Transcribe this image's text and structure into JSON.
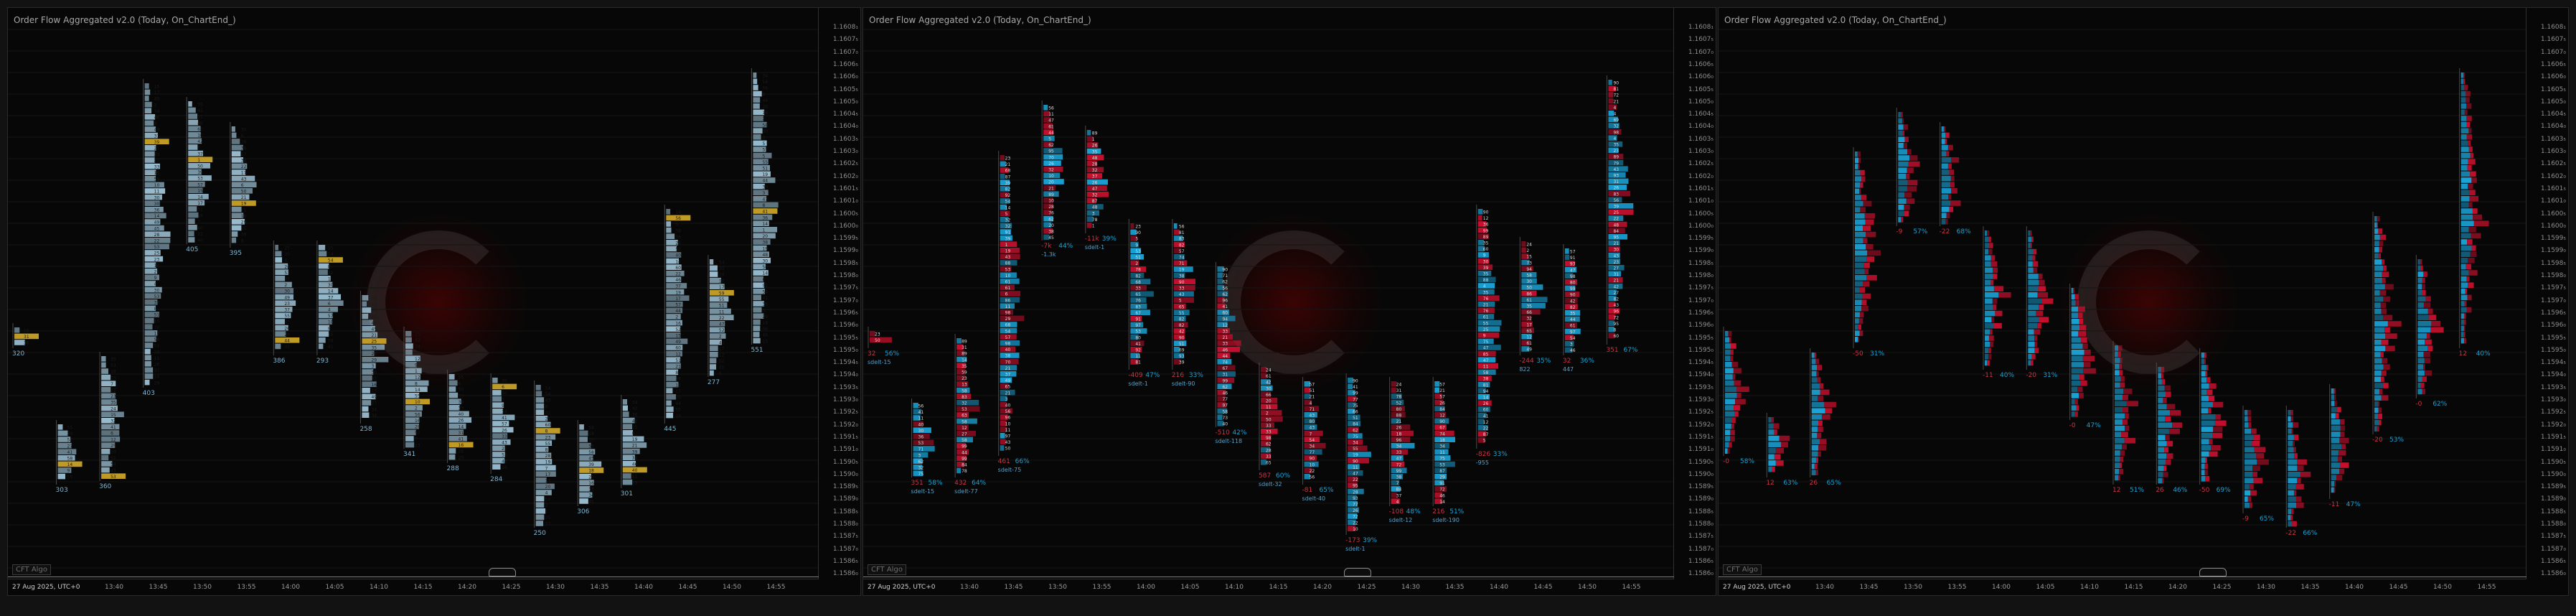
{
  "app": {
    "colors": {
      "background": "#070707",
      "profile_blue_light": "#9fc4d8",
      "profile_blue": "#1aa3d6",
      "profile_red": "#c8102e",
      "poc_gold": "#c9a227",
      "text_gray": "#9a9a9a"
    }
  },
  "panels": [
    {
      "title": "Order Flow Aggregated v2.0 (Today, On_ChartEnd_)",
      "style": "volume",
      "date_label": "27 Aug 2025, UTC+0",
      "badge": "CFT Algo",
      "price_labels": [
        "1.1608₁",
        "1.1607₅",
        "1.1607₀",
        "1.1606₅",
        "1.1606₀",
        "1.1605₅",
        "1.1605₀",
        "1.1604₅",
        "1.1604₀",
        "1.1603₅",
        "1.1603₀",
        "1.1602₅",
        "1.1602₀",
        "1.1601₅",
        "1.1601₀",
        "1.1600₅",
        "1.1600₀",
        "1.1599₅",
        "1.1599₀",
        "1.1598₅",
        "1.1598₀",
        "1.1597₅",
        "1.1597₀",
        "1.1596₅",
        "1.1596₀",
        "1.1595₅",
        "1.1595₀",
        "1.1594₅",
        "1.1594₀",
        "1.1593₅",
        "1.1593₀",
        "1.1592₅",
        "1.1592₀",
        "1.1591₅",
        "1.1591₀",
        "1.1590₅",
        "1.1590₀",
        "1.1589₅",
        "1.1589₀",
        "1.1588₅",
        "1.1588₀",
        "1.1587₅",
        "1.1587₀",
        "1.1586₅",
        "1.1586₀"
      ],
      "time_labels": [
        "13:40",
        "13:45",
        "13:50",
        "13:55",
        "14:00",
        "14:05",
        "14:10",
        "14:15",
        "14:20",
        "14:25",
        "14:30",
        "14:35",
        "14:40",
        "14:45",
        "14:50",
        "14:55"
      ],
      "bar_totals": [
        "320",
        "303",
        "360",
        "403",
        "405",
        "395",
        "386",
        "293",
        "258",
        "341",
        "288",
        "284",
        "250",
        "306",
        "301",
        "445",
        "277",
        "551"
      ],
      "annotations": []
    },
    {
      "title": "Order Flow Aggregated v2.0 (Today, On_ChartEnd_)",
      "style": "delta",
      "date_label": "27 Aug 2025, UTC+0",
      "badge": "CFT Algo",
      "price_labels": [
        "1.1608₁",
        "1.1607₅",
        "1.1607₀",
        "1.1606₅",
        "1.1606₀",
        "1.1605₅",
        "1.1605₀",
        "1.1604₅",
        "1.1604₀",
        "1.1603₅",
        "1.1603₀",
        "1.1602₅",
        "1.1602₀",
        "1.1601₅",
        "1.1601₀",
        "1.1600₅",
        "1.1600₀",
        "1.1599₅",
        "1.1599₀",
        "1.1598₅",
        "1.1598₀",
        "1.1597₅",
        "1.1597₀",
        "1.1596₅",
        "1.1596₀",
        "1.1595₅",
        "1.1595₀",
        "1.1594₅",
        "1.1594₀",
        "1.1593₅",
        "1.1593₀",
        "1.1592₅",
        "1.1592₀",
        "1.1591₅",
        "1.1591₀",
        "1.1590₅",
        "1.1590₀",
        "1.1589₅",
        "1.1589₀",
        "1.1588₅",
        "1.1588₀",
        "1.1587₅",
        "1.1587₀",
        "1.1586₅",
        "1.1586₀"
      ],
      "time_labels": [
        "13:40",
        "13:45",
        "13:50",
        "13:55",
        "14:00",
        "14:05",
        "14:10",
        "14:15",
        "14:20",
        "14:25",
        "14:30",
        "14:35",
        "14:40",
        "14:45",
        "14:50",
        "14:55"
      ],
      "bar_totals": [
        "32",
        "351",
        "432",
        "461",
        "-7k",
        "-11k",
        "-409",
        "216",
        "-510",
        "587",
        "-81",
        "-173",
        "-108",
        "216",
        "-826",
        "-244"
      ],
      "annotations": [
        "sdelt-15",
        "sdelt-15",
        "sdelt-77",
        "sdelt-75",
        "-1.3k",
        "sdelt-1",
        "sdelt-1",
        "sdelt-90",
        "sdelt-118",
        "sdelt-32",
        "sdelt-40",
        "sdelt-1",
        "sdelt-12",
        "sdelt-190",
        "-955",
        "822",
        "447"
      ]
    },
    {
      "title": "Order Flow Aggregated v2.0 (Today, On_ChartEnd_)",
      "style": "split",
      "date_label": "27 Aug 2025, UTC+0",
      "badge": "CFT Algo",
      "price_labels": [
        "1.1608₁",
        "1.1607₅",
        "1.1607₀",
        "1.1606₅",
        "1.1606₀",
        "1.1605₅",
        "1.1605₀",
        "1.1604₅",
        "1.1604₀",
        "1.1603₅",
        "1.1603₀",
        "1.1602₅",
        "1.1602₀",
        "1.1601₅",
        "1.1601₀",
        "1.1600₅",
        "1.1600₀",
        "1.1599₅",
        "1.1599₀",
        "1.1598₅",
        "1.1598₀",
        "1.1597₅",
        "1.1597₀",
        "1.1596₅",
        "1.1596₀",
        "1.1595₅",
        "1.1595₀",
        "1.1594₅",
        "1.1594₀",
        "1.1593₅",
        "1.1593₀",
        "1.1592₅",
        "1.1592₀",
        "1.1591₅",
        "1.1591₀",
        "1.1590₅",
        "1.1590₀",
        "1.1589₅",
        "1.1589₀",
        "1.1588₅",
        "1.1588₀",
        "1.1587₅",
        "1.1587₀",
        "1.1586₅",
        "1.1586₀"
      ],
      "time_labels": [
        "13:40",
        "13:45",
        "13:50",
        "13:55",
        "14:00",
        "14:05",
        "14:10",
        "14:15",
        "14:20",
        "14:25",
        "14:30",
        "14:35",
        "14:40",
        "14:45",
        "14:50",
        "14:55"
      ],
      "bar_totals": [
        "-0",
        "12",
        "26",
        "-50",
        "-9",
        "-22",
        "-11",
        "-20"
      ],
      "annotations": []
    }
  ]
}
